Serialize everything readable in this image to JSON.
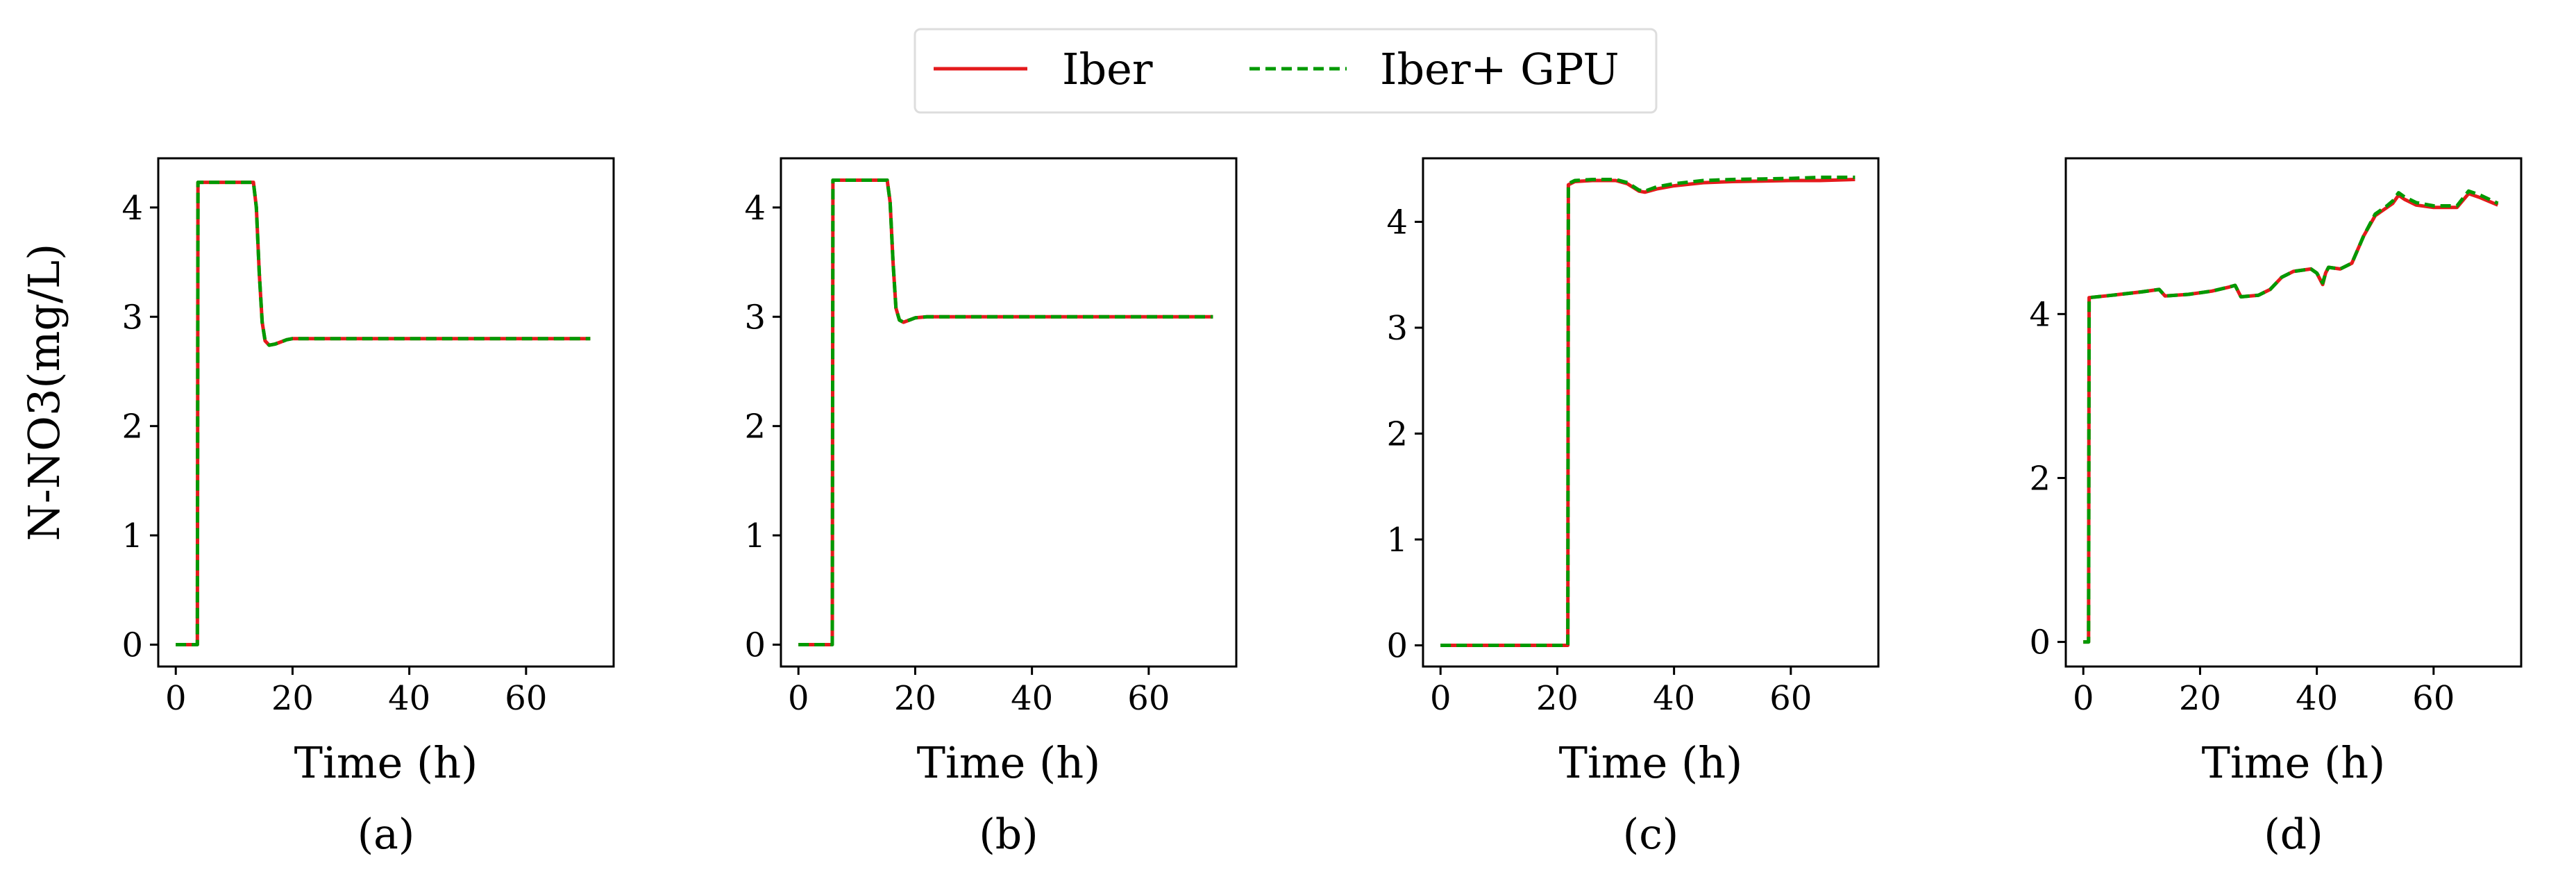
{
  "legend": {
    "entries": [
      {
        "label": "Iber",
        "color": "#e41a1c",
        "style": "solid"
      },
      {
        "label": "Iber+ GPU",
        "color": "#009900",
        "style": "dashed"
      }
    ]
  },
  "colors": {
    "iber": "#e41a1c",
    "gpu": "#009900",
    "axis": "#000000"
  },
  "chart_data": [
    {
      "type": "line",
      "caption": "(a)",
      "xlabel": "Time (h)",
      "ylabel": "N-NO3(mg/L)",
      "xlim": [
        -3,
        75
      ],
      "ylim": [
        -0.2,
        4.45
      ],
      "xticks": [
        0,
        20,
        40,
        60
      ],
      "yticks": [
        0,
        1,
        2,
        3,
        4
      ],
      "series": [
        {
          "name": "Iber",
          "x": [
            0,
            3.7,
            3.8,
            13.3,
            13.8,
            14.3,
            14.8,
            15.3,
            16,
            17,
            18,
            19,
            20,
            22,
            25,
            30,
            40,
            50,
            60,
            71
          ],
          "y": [
            0,
            0,
            4.23,
            4.23,
            4.0,
            3.4,
            2.95,
            2.78,
            2.74,
            2.75,
            2.77,
            2.79,
            2.8,
            2.8,
            2.8,
            2.8,
            2.8,
            2.8,
            2.8,
            2.8
          ]
        },
        {
          "name": "Iber+ GPU",
          "x": [
            0,
            3.7,
            3.8,
            13.3,
            13.8,
            14.3,
            14.8,
            15.3,
            16,
            17,
            18,
            19,
            20,
            22,
            25,
            30,
            40,
            50,
            60,
            71
          ],
          "y": [
            0,
            0,
            4.23,
            4.23,
            4.0,
            3.4,
            2.95,
            2.78,
            2.74,
            2.75,
            2.77,
            2.79,
            2.8,
            2.8,
            2.8,
            2.8,
            2.8,
            2.8,
            2.8,
            2.8
          ]
        }
      ]
    },
    {
      "type": "line",
      "caption": "(b)",
      "xlabel": "Time (h)",
      "ylabel": "",
      "xlim": [
        -3,
        75
      ],
      "ylim": [
        -0.2,
        4.45
      ],
      "xticks": [
        0,
        20,
        40,
        60
      ],
      "yticks": [
        0,
        1,
        2,
        3,
        4
      ],
      "series": [
        {
          "name": "Iber",
          "x": [
            0,
            5.8,
            5.9,
            15.2,
            15.7,
            16.2,
            16.7,
            17.3,
            18,
            19,
            20,
            22,
            25,
            30,
            40,
            50,
            60,
            71
          ],
          "y": [
            0,
            0,
            4.25,
            4.25,
            4.05,
            3.5,
            3.08,
            2.97,
            2.95,
            2.97,
            2.99,
            3.0,
            3.0,
            3.0,
            3.0,
            3.0,
            3.0,
            3.0
          ]
        },
        {
          "name": "Iber+ GPU",
          "x": [
            0,
            5.8,
            5.9,
            15.2,
            15.7,
            16.2,
            16.7,
            17.3,
            18,
            19,
            20,
            22,
            25,
            30,
            40,
            50,
            60,
            71
          ],
          "y": [
            0,
            0,
            4.25,
            4.25,
            4.05,
            3.5,
            3.08,
            2.97,
            2.95,
            2.97,
            2.99,
            3.0,
            3.0,
            3.0,
            3.0,
            3.0,
            3.0,
            3.0
          ]
        }
      ]
    },
    {
      "type": "line",
      "caption": "(c)",
      "xlabel": "Time (h)",
      "ylabel": "",
      "xlim": [
        -3,
        75
      ],
      "ylim": [
        -0.2,
        4.6
      ],
      "xticks": [
        0,
        20,
        40,
        60
      ],
      "yticks": [
        0,
        1,
        2,
        3,
        4
      ],
      "series": [
        {
          "name": "Iber",
          "x": [
            0,
            21.8,
            21.9,
            23,
            26,
            30,
            32,
            34,
            35,
            37,
            40,
            45,
            50,
            60,
            65,
            71
          ],
          "y": [
            0,
            0,
            4.35,
            4.38,
            4.39,
            4.39,
            4.36,
            4.29,
            4.28,
            4.31,
            4.34,
            4.37,
            4.38,
            4.39,
            4.39,
            4.4
          ]
        },
        {
          "name": "Iber+ GPU",
          "x": [
            0,
            21.8,
            21.9,
            23,
            26,
            30,
            32,
            34,
            35,
            37,
            40,
            45,
            50,
            60,
            65,
            71
          ],
          "y": [
            0,
            0,
            4.36,
            4.39,
            4.4,
            4.4,
            4.37,
            4.3,
            4.29,
            4.33,
            4.36,
            4.39,
            4.4,
            4.41,
            4.42,
            4.42
          ]
        }
      ]
    },
    {
      "type": "line",
      "caption": "(d)",
      "xlabel": "Time (h)",
      "ylabel": "",
      "xlim": [
        -3,
        75
      ],
      "ylim": [
        -0.3,
        5.9
      ],
      "xticks": [
        0,
        20,
        40,
        60
      ],
      "yticks": [
        0,
        2,
        4
      ],
      "series": [
        {
          "name": "Iber",
          "x": [
            0,
            0.9,
            1.0,
            5,
            10,
            13,
            14,
            18,
            22,
            25,
            26,
            27,
            30,
            32,
            34,
            36,
            39,
            40,
            41,
            41.5,
            42,
            44,
            46,
            48,
            50,
            52,
            53,
            54,
            55,
            57,
            60,
            64,
            66,
            68,
            71
          ],
          "y": [
            0,
            0,
            4.2,
            4.23,
            4.27,
            4.3,
            4.22,
            4.24,
            4.28,
            4.33,
            4.35,
            4.21,
            4.23,
            4.3,
            4.45,
            4.52,
            4.55,
            4.5,
            4.36,
            4.5,
            4.57,
            4.55,
            4.62,
            4.95,
            5.2,
            5.3,
            5.35,
            5.45,
            5.4,
            5.33,
            5.3,
            5.3,
            5.47,
            5.42,
            5.33
          ]
        },
        {
          "name": "Iber+ GPU",
          "x": [
            0,
            0.9,
            1.0,
            5,
            10,
            13,
            14,
            18,
            22,
            25,
            26,
            27,
            30,
            32,
            34,
            36,
            39,
            40,
            41,
            41.5,
            42,
            44,
            46,
            48,
            50,
            52,
            53,
            54,
            55,
            57,
            60,
            64,
            66,
            68,
            71
          ],
          "y": [
            0,
            0,
            4.2,
            4.23,
            4.27,
            4.3,
            4.22,
            4.24,
            4.28,
            4.33,
            4.35,
            4.21,
            4.23,
            4.3,
            4.45,
            4.52,
            4.55,
            4.5,
            4.38,
            4.5,
            4.57,
            4.55,
            4.62,
            4.95,
            5.22,
            5.32,
            5.38,
            5.48,
            5.43,
            5.36,
            5.32,
            5.32,
            5.5,
            5.45,
            5.35
          ]
        }
      ]
    }
  ]
}
